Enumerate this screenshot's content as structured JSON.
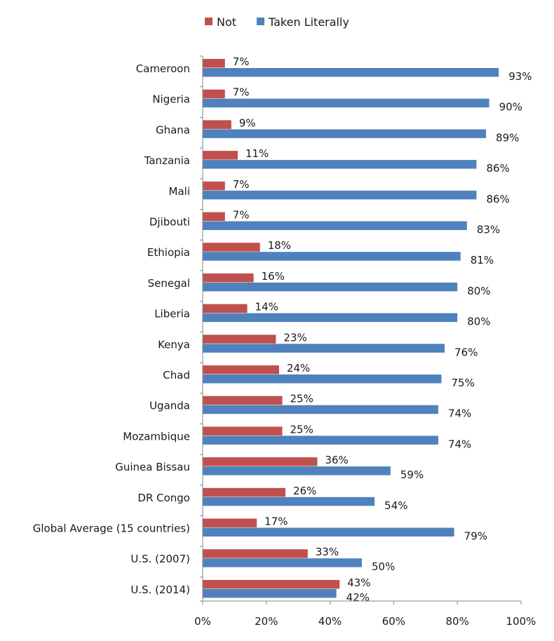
{
  "chart_data": {
    "type": "bar",
    "orientation": "horizontal",
    "title": "",
    "xlabel": "",
    "ylabel": "",
    "xlim": [
      0,
      100
    ],
    "xticks": [
      "0%",
      "20%",
      "40%",
      "60%",
      "80%",
      "100%"
    ],
    "legend_position": "top",
    "categories": [
      "Cameroon",
      "Nigeria",
      "Ghana",
      "Tanzania",
      "Mali",
      "Djibouti",
      "Ethiopia",
      "Senegal",
      "Liberia",
      "Kenya",
      "Chad",
      "Uganda",
      "Mozambique",
      "Guinea Bissau",
      "DR Congo",
      "Global Average (15 countries)",
      "U.S. (2007)",
      "U.S. (2014)"
    ],
    "series": [
      {
        "name": "Not",
        "color": "#c0504d",
        "values": [
          7,
          7,
          9,
          11,
          7,
          7,
          18,
          16,
          14,
          23,
          24,
          25,
          25,
          36,
          26,
          17,
          33,
          43
        ],
        "labels": [
          "7%",
          "7%",
          "9%",
          "11%",
          "7%",
          "7%",
          "18%",
          "16%",
          "14%",
          "23%",
          "24%",
          "25%",
          "25%",
          "36%",
          "26%",
          "17%",
          "33%",
          "43%"
        ]
      },
      {
        "name": "Taken Literally",
        "color": "#4f81bd",
        "values": [
          93,
          90,
          89,
          86,
          86,
          83,
          81,
          80,
          80,
          76,
          75,
          74,
          74,
          59,
          54,
          79,
          50,
          42
        ],
        "labels": [
          "93%",
          "90%",
          "89%",
          "86%",
          "86%",
          "83%",
          "81%",
          "80%",
          "80%",
          "76%",
          "75%",
          "74%",
          "74%",
          "59%",
          "54%",
          "79%",
          "50%",
          "42%"
        ]
      }
    ]
  }
}
